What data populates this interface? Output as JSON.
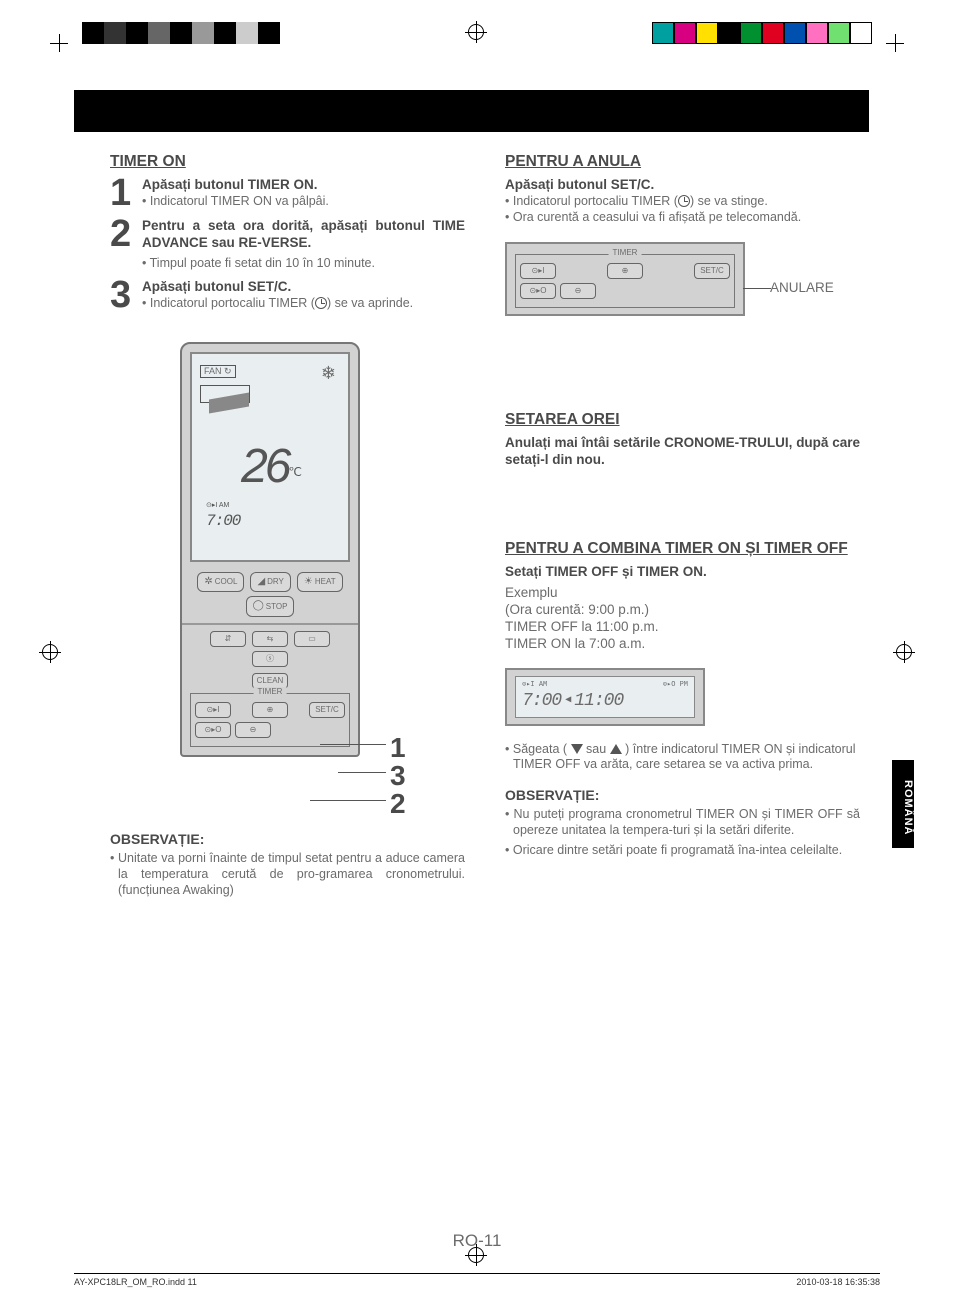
{
  "printerMarks": {
    "bwShades": [
      "#000000",
      "#333333",
      "#000000",
      "#666666",
      "#000000",
      "#999999",
      "#000000",
      "#cccccc",
      "#000000",
      "#ffffff"
    ],
    "colorSwatches": [
      "#00a0a0",
      "#d60080",
      "#ffe000",
      "#000000",
      "#009030",
      "#e00020",
      "#0050b0",
      "#ff70c0",
      "#70e070",
      "#ffffff"
    ]
  },
  "left": {
    "h_timer_on": "TIMER ON",
    "step1_bold": "Apăsați butonul TIMER ON.",
    "step1_bul": "Indicatorul TIMER ON va pâlpâi.",
    "step2_bold": "Pentru a seta ora dorită, apăsați butonul TIME ADVANCE sau RE-VERSE.",
    "step2_bul": "Timpul poate fi setat din 10 în 10 minute.",
    "step3_bold": "Apăsați butonul SET/C.",
    "step3_bul_a": "Indicatorul portocaliu TIMER (",
    "step3_bul_b": ") se va aprinde.",
    "note_h": "OBSERVAȚIE:",
    "note_bul": "Unitate va porni înainte de timpul setat pentru a aduce camera la temperatura cerută de pro-gramarea cronometrului. (funcțiunea Awaking)"
  },
  "remote": {
    "fan_label": "FAN",
    "temp": "26",
    "temp_unit": "℃",
    "time_prefix": "⊙▸I  AM",
    "time_value": "7:00",
    "btn_cool": "COOL",
    "btn_dry": "DRY",
    "btn_heat": "HEAT",
    "btn_stop": "STOP",
    "btn_clean": "CLEAN",
    "btn_setc": "SET/C",
    "timer_label": "TIMER",
    "callout1": "1",
    "callout2": "2",
    "callout3": "3"
  },
  "right": {
    "h_cancel": "PENTRU A ANULA",
    "cancel_bold": "Apăsați butonul SET/C.",
    "cancel_b1a": "Indicatorul portocaliu TIMER (",
    "cancel_b1b": ") se va stinge.",
    "cancel_b2": "Ora curentă a ceasului va fi afișată pe telecomandă.",
    "anulare": "ANULARE",
    "h_sethour": "SETAREA OREI",
    "sethour_bold": "Anulați mai întâi setările CRONOME-TRULUI, după care setați-l din nou.",
    "h_combine": "PENTRU A COMBINA TIMER ON ȘI TIMER OFF",
    "combine_bold": "Setați TIMER OFF și TIMER ON.",
    "combine_ex": "Exemplu",
    "combine_l1": "(Ora curentă: 9:00 p.m.)",
    "combine_l2": "TIMER OFF la 11:00 p.m.",
    "combine_l3": "TIMER ON la 7:00 a.m.",
    "disp_am": "⊙▸I   AM",
    "disp_pm": "⊙▸O   PM",
    "disp_t1": "7:00",
    "disp_t2": "11:00",
    "arrow_bul_a": "Săgeata ( ",
    "arrow_bul_mid": " sau ",
    "arrow_bul_b": " ) între indicatorul TIMER ON și indicatorul TIMER OFF va arăta, care setarea se va activa prima.",
    "note_h": "OBSERVAȚIE:",
    "note_b1": "Nu puteți programa cronometrul TIMER ON și TIMER OFF să opereze unitatea la tempera-turi și la setări diferite.",
    "note_b2": "Oricare dintre setări poate fi programată îna-intea celeilalte."
  },
  "langTab": "ROMÂNĂ",
  "pageNumber": "RO-11",
  "footer": {
    "file": "AY-XPC18LR_OM_RO.indd   11",
    "stamp": "2010-03-18   16:35:38"
  }
}
